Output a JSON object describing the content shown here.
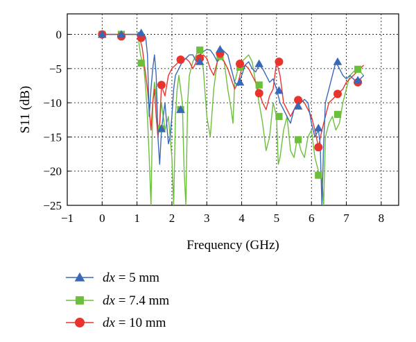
{
  "chart_data": {
    "type": "line",
    "xlabel": "Frequency (GHz)",
    "ylabel": "S11 (dB)",
    "xlim": [
      -1,
      8.5
    ],
    "ylim": [
      -25,
      3
    ],
    "xticks": [
      -1,
      0,
      1,
      2,
      3,
      4,
      5,
      6,
      7,
      8
    ],
    "yticks": [
      0,
      -5,
      -10,
      -15,
      -20,
      -25
    ],
    "grid": true,
    "legend_position": "bottom",
    "series": [
      {
        "name": "dx = 5 mm",
        "legend_var": "dx",
        "legend_value": " = 5 mm",
        "color": "#3a68b8",
        "marker": "triangle",
        "x": [
          0,
          0.2,
          0.4,
          0.6,
          0.8,
          1.0,
          1.05,
          1.1,
          1.15,
          1.2,
          1.25,
          1.3,
          1.35,
          1.4,
          1.45,
          1.5,
          1.55,
          1.6,
          1.65,
          1.7,
          1.75,
          1.8,
          1.85,
          1.9,
          1.95,
          2.0,
          2.05,
          2.1,
          2.2,
          2.3,
          2.4,
          2.5,
          2.6,
          2.7,
          2.8,
          2.9,
          3.0,
          3.1,
          3.2,
          3.3,
          3.4,
          3.5,
          3.6,
          3.7,
          3.8,
          3.9,
          4.0,
          4.1,
          4.2,
          4.3,
          4.4,
          4.5,
          4.6,
          4.7,
          4.8,
          4.9,
          5.0,
          5.1,
          5.2,
          5.3,
          5.4,
          5.5,
          5.6,
          5.7,
          5.8,
          5.9,
          6.0,
          6.1,
          6.2,
          6.25,
          6.3,
          6.35,
          6.4,
          6.5,
          6.6,
          6.7,
          6.8,
          6.9,
          7.0,
          7.1,
          7.2,
          7.3,
          7.4,
          7.5
        ],
        "y": [
          0,
          0,
          0,
          0,
          0,
          0,
          0.3,
          0.2,
          0.1,
          0,
          -0.5,
          -3,
          -12,
          -8,
          -5,
          -3,
          -6,
          -15,
          -19,
          -14,
          -12,
          -10,
          -13,
          -16,
          -15,
          -12,
          -8,
          -6,
          -5,
          -4,
          -3.5,
          -3,
          -3,
          -4,
          -3,
          -2.5,
          -2.2,
          -2.3,
          -3,
          -4,
          -2,
          -2.5,
          -3,
          -5,
          -7,
          -7.5,
          -6,
          -4.5,
          -4,
          -5,
          -5.5,
          -4.5,
          -5,
          -6,
          -7,
          -6.5,
          -8,
          -10,
          -11,
          -12,
          -13,
          -11,
          -10.5,
          -10,
          -9.5,
          -10,
          -13,
          -15,
          -14,
          -16,
          -25,
          -16,
          -10,
          -8,
          -6,
          -4,
          -5,
          -6,
          -6.5,
          -6,
          -6.5,
          -7,
          -6.5,
          -6
        ],
        "markers_x": [
          0,
          0.55,
          1.12,
          1.7,
          2.25,
          2.8,
          3.38,
          3.95,
          4.5,
          5.07,
          5.62,
          6.2,
          6.75,
          7.33
        ],
        "markers_y": [
          0,
          0,
          0.2,
          -13.8,
          -11,
          -4,
          -2.2,
          -7,
          -4.3,
          -8.2,
          -10.5,
          -13.7,
          -4,
          -6.7
        ]
      },
      {
        "name": "dx = 7.4 mm",
        "legend_var": "dx",
        "legend_value": " = 7.4 mm",
        "color": "#6cbf3a",
        "marker": "square",
        "x": [
          0,
          0.2,
          0.4,
          0.6,
          0.8,
          1.0,
          1.05,
          1.1,
          1.15,
          1.2,
          1.25,
          1.3,
          1.35,
          1.4,
          1.45,
          1.5,
          1.55,
          1.6,
          1.65,
          1.7,
          1.75,
          1.8,
          1.85,
          1.9,
          2.0,
          2.05,
          2.1,
          2.15,
          2.2,
          2.3,
          2.35,
          2.4,
          2.45,
          2.5,
          2.6,
          2.7,
          2.8,
          2.9,
          3.0,
          3.1,
          3.2,
          3.3,
          3.4,
          3.5,
          3.6,
          3.7,
          3.75,
          3.8,
          3.9,
          4.0,
          4.1,
          4.2,
          4.3,
          4.4,
          4.5,
          4.6,
          4.7,
          4.8,
          4.9,
          5.0,
          5.05,
          5.1,
          5.2,
          5.3,
          5.4,
          5.5,
          5.6,
          5.7,
          5.8,
          5.9,
          6.0,
          6.1,
          6.2,
          6.3,
          6.35,
          6.4,
          6.5,
          6.6,
          6.7,
          6.8,
          6.9,
          7.0,
          7.1,
          7.2,
          7.3,
          7.4,
          7.5
        ],
        "y": [
          0,
          0,
          0,
          0,
          0,
          0,
          -1,
          -3,
          -4,
          -5,
          -8,
          -12,
          -18,
          -25,
          -10,
          -7,
          -9,
          -14,
          -13,
          -10,
          -12,
          -14,
          -13,
          -12,
          -18,
          -25,
          -12,
          -8,
          -6,
          -10,
          -20,
          -25,
          -10,
          -6,
          -4,
          -3,
          -2,
          -5,
          -12,
          -15,
          -8,
          -4,
          -3.5,
          -4,
          -8,
          -11,
          -13,
          -7,
          -5,
          -4,
          -3.5,
          -3,
          -4,
          -7,
          -10,
          -13,
          -17,
          -15,
          -10,
          -12,
          -19,
          -18,
          -14,
          -12,
          -17,
          -18,
          -15,
          -17,
          -18,
          -15,
          -14,
          -18,
          -20,
          -21,
          -25,
          -15,
          -13,
          -12,
          -14,
          -13,
          -10,
          -8,
          -6,
          -5.5,
          -5,
          -5.5,
          -6
        ],
        "markers_x": [
          0,
          0.55,
          1.12,
          1.7,
          2.25,
          2.8,
          3.38,
          3.95,
          4.5,
          5.07,
          5.62,
          6.2,
          6.75,
          7.33
        ],
        "markers_y": [
          0,
          0,
          -4.2,
          -13.8,
          -11,
          -2.3,
          -3.2,
          -4.8,
          -7.4,
          -12,
          -15.4,
          -20.6,
          -11.7,
          -5.1
        ]
      },
      {
        "name": "dx = 10 mm",
        "legend_var": "dx",
        "legend_value": " = 10 mm",
        "color": "#e8342c",
        "marker": "circle",
        "x": [
          0,
          0.2,
          0.4,
          0.6,
          0.8,
          1.0,
          1.05,
          1.1,
          1.15,
          1.2,
          1.25,
          1.3,
          1.35,
          1.4,
          1.45,
          1.5,
          1.55,
          1.6,
          1.65,
          1.7,
          1.8,
          1.9,
          2.0,
          2.1,
          2.2,
          2.3,
          2.4,
          2.5,
          2.6,
          2.7,
          2.8,
          2.9,
          3.0,
          3.1,
          3.2,
          3.3,
          3.4,
          3.5,
          3.6,
          3.7,
          3.8,
          3.9,
          4.0,
          4.1,
          4.2,
          4.3,
          4.4,
          4.5,
          4.6,
          4.7,
          4.8,
          4.9,
          5.0,
          5.1,
          5.2,
          5.3,
          5.4,
          5.5,
          5.6,
          5.7,
          5.8,
          5.9,
          6.0,
          6.1,
          6.2,
          6.3,
          6.4,
          6.5,
          6.6,
          6.7,
          6.8,
          6.9,
          7.0,
          7.1,
          7.2,
          7.3,
          7.4,
          7.5
        ],
        "y": [
          0,
          0,
          0,
          0,
          0,
          0,
          -0.5,
          -1,
          -2,
          -4,
          -6,
          -8,
          -11,
          -14,
          -10,
          -8,
          -12,
          -15,
          -13,
          -7.5,
          -9,
          -6,
          -5,
          -4.5,
          -4,
          -3.8,
          -3.5,
          -4,
          -5,
          -4,
          -3.5,
          -3,
          -3.5,
          -5,
          -6,
          -4,
          -3,
          -4,
          -5,
          -6.5,
          -8,
          -7,
          -5,
          -4.5,
          -5,
          -6,
          -7,
          -8.5,
          -10,
          -11,
          -9,
          -8,
          -4,
          -6,
          -10,
          -11,
          -12,
          -11,
          -10,
          -9.5,
          -10,
          -11,
          -12,
          -14,
          -16.5,
          -14,
          -12,
          -10,
          -9.5,
          -9,
          -8.5,
          -8,
          -7,
          -6.5,
          -6,
          -5.5,
          -5,
          -4.5
        ],
        "markers_x": [
          0,
          0.55,
          1.12,
          1.7,
          2.25,
          2.8,
          3.38,
          3.95,
          4.5,
          5.07,
          5.62,
          6.2,
          6.75,
          7.33
        ],
        "markers_y": [
          0,
          -0.3,
          -0.5,
          -7.4,
          -3.7,
          -3.5,
          -2.8,
          -4.3,
          -8.6,
          -4,
          -9.6,
          -16.5,
          -8.7,
          -7
        ]
      }
    ]
  }
}
